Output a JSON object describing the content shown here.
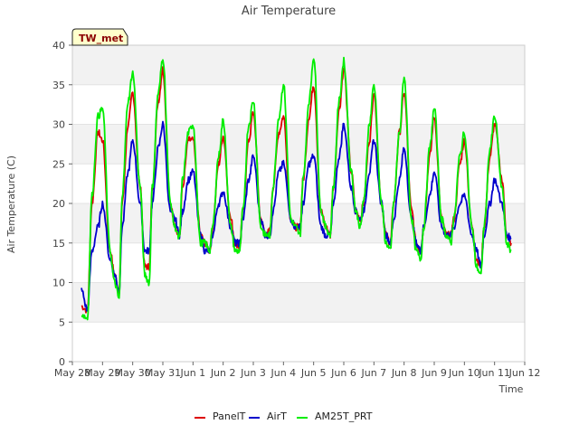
{
  "chart_data": {
    "type": "line",
    "title": "Air Temperature",
    "xlabel": "Time",
    "ylabel": "Air Temperature (C)",
    "station_badge": "TW_met",
    "ylim": [
      0,
      40
    ],
    "yticks": [
      0,
      5,
      10,
      15,
      20,
      25,
      30,
      35,
      40
    ],
    "xlim": [
      0,
      15
    ],
    "x_unit": "days since May 28",
    "xtick_labels": [
      "May 28",
      "May 29",
      "May 30",
      "May 31",
      "Jun 1",
      "Jun 2",
      "Jun 3",
      "Jun 4",
      "Jun 5",
      "Jun 6",
      "Jun 7",
      "Jun 8",
      "Jun 9",
      "Jun 10",
      "Jun 11",
      "Jun 12"
    ],
    "grid": "horizontal bands",
    "legend_position": "bottom-center",
    "series": [
      {
        "name": "PanelT",
        "color": "#dd0000",
        "x": [
          0.3,
          0.5,
          0.65,
          0.85,
          1.0,
          1.25,
          1.4,
          1.55,
          1.65,
          1.85,
          2.0,
          2.25,
          2.4,
          2.55,
          2.65,
          2.85,
          3.0,
          3.25,
          3.4,
          3.55,
          3.65,
          3.85,
          4.0,
          4.25,
          4.4,
          4.55,
          4.65,
          4.85,
          5.0,
          5.25,
          5.4,
          5.55,
          5.65,
          5.85,
          6.0,
          6.25,
          6.4,
          6.55,
          6.65,
          6.85,
          7.0,
          7.25,
          7.4,
          7.55,
          7.65,
          7.85,
          8.0,
          8.25,
          8.4,
          8.55,
          8.65,
          8.85,
          9.0,
          9.25,
          9.4,
          9.55,
          9.65,
          9.85,
          10.0,
          10.25,
          10.4,
          10.55,
          10.65,
          10.85,
          11.0,
          11.25,
          11.4,
          11.55,
          11.65,
          11.85,
          12.0,
          12.25,
          12.4,
          12.55,
          12.65,
          12.85,
          13.0,
          13.25,
          13.4,
          13.55,
          13.65,
          13.85,
          14.0,
          14.25,
          14.4,
          14.55
        ],
        "y": [
          7,
          6.5,
          20,
          29,
          28,
          14,
          11,
          9,
          20,
          30,
          34,
          22,
          12,
          12,
          22,
          33,
          37,
          20,
          17,
          16,
          22,
          28,
          28,
          16,
          15,
          14,
          17,
          25,
          28.5,
          18,
          15,
          14.5,
          19,
          28,
          31.5,
          18,
          16,
          16.5,
          22,
          29,
          31,
          18,
          17,
          17,
          23,
          31,
          35,
          19,
          17,
          16,
          22,
          32,
          37,
          24,
          19,
          18,
          20,
          28,
          34,
          20,
          16,
          15,
          20,
          29,
          34,
          19,
          15,
          14,
          17,
          26,
          31,
          18,
          16,
          16,
          18,
          25,
          28,
          17,
          13,
          12,
          17,
          26,
          30,
          23,
          16,
          15
        ]
      },
      {
        "name": "AirT",
        "color": "#0000cc",
        "x": [
          0.3,
          0.5,
          0.65,
          0.85,
          1.0,
          1.25,
          1.4,
          1.55,
          1.65,
          1.85,
          2.0,
          2.25,
          2.4,
          2.55,
          2.65,
          2.85,
          3.0,
          3.25,
          3.4,
          3.55,
          3.65,
          3.85,
          4.0,
          4.25,
          4.4,
          4.55,
          4.65,
          4.85,
          5.0,
          5.25,
          5.4,
          5.55,
          5.65,
          5.85,
          6.0,
          6.25,
          6.4,
          6.55,
          6.65,
          6.85,
          7.0,
          7.25,
          7.4,
          7.55,
          7.65,
          7.85,
          8.0,
          8.25,
          8.4,
          8.55,
          8.65,
          8.85,
          9.0,
          9.25,
          9.4,
          9.55,
          9.65,
          9.85,
          10.0,
          10.25,
          10.4,
          10.55,
          10.65,
          10.85,
          11.0,
          11.25,
          11.4,
          11.55,
          11.65,
          11.85,
          12.0,
          12.25,
          12.4,
          12.55,
          12.65,
          12.85,
          13.0,
          13.25,
          13.4,
          13.55,
          13.65,
          13.85,
          14.0,
          14.25,
          14.4,
          14.55
        ],
        "y": [
          9,
          6.5,
          14,
          17,
          20,
          13,
          11,
          9,
          17,
          24,
          28,
          20,
          14,
          14,
          20,
          27,
          30,
          19,
          18,
          16,
          19,
          23,
          24,
          16,
          14,
          14,
          16,
          20,
          21.5,
          17,
          15,
          15,
          18,
          23,
          26,
          18,
          16,
          16,
          19,
          24,
          25,
          18,
          17,
          17,
          20,
          25,
          26,
          17,
          16,
          16,
          20,
          26,
          30,
          22,
          19,
          18,
          19,
          24,
          28,
          20,
          16,
          15,
          18,
          23,
          27,
          18,
          15,
          14,
          17,
          21,
          24,
          17,
          16,
          16,
          17,
          20,
          21,
          16,
          14,
          12,
          16,
          20,
          23,
          20,
          16,
          15.5
        ]
      },
      {
        "name": "AM25T_PRT",
        "color": "#00ee00",
        "x": [
          0.3,
          0.5,
          0.65,
          0.85,
          1.0,
          1.25,
          1.4,
          1.55,
          1.65,
          1.85,
          2.0,
          2.25,
          2.4,
          2.55,
          2.65,
          2.85,
          3.0,
          3.25,
          3.4,
          3.55,
          3.65,
          3.85,
          4.0,
          4.25,
          4.4,
          4.55,
          4.65,
          4.85,
          5.0,
          5.25,
          5.4,
          5.55,
          5.65,
          5.85,
          6.0,
          6.25,
          6.4,
          6.55,
          6.65,
          6.85,
          7.0,
          7.25,
          7.4,
          7.55,
          7.65,
          7.85,
          8.0,
          8.25,
          8.4,
          8.55,
          8.65,
          8.85,
          9.0,
          9.25,
          9.4,
          9.55,
          9.65,
          9.85,
          10.0,
          10.25,
          10.4,
          10.55,
          10.65,
          10.85,
          11.0,
          11.25,
          11.4,
          11.55,
          11.65,
          11.85,
          12.0,
          12.25,
          12.4,
          12.55,
          12.65,
          12.85,
          13.0,
          13.25,
          13.4,
          13.55,
          13.65,
          13.85,
          14.0,
          14.25,
          14.4,
          14.55
        ],
        "y": [
          6,
          5.5,
          21,
          31,
          32,
          14,
          10,
          8,
          21,
          33,
          36.5,
          22,
          11,
          10,
          22,
          34,
          38.5,
          20,
          17,
          15.5,
          23,
          29,
          30,
          15,
          15,
          14,
          17,
          26,
          30.5,
          17,
          14,
          14,
          19,
          30,
          33,
          17,
          16,
          16,
          22,
          31,
          35,
          18,
          17,
          16,
          23,
          33,
          38.5,
          19,
          17,
          16,
          22,
          33,
          38,
          24,
          19,
          17,
          20,
          30,
          35,
          20,
          15,
          14,
          20,
          29,
          36,
          18,
          14,
          13,
          17,
          27,
          32,
          18,
          16,
          15,
          18,
          26,
          29,
          17,
          12,
          11,
          17,
          27,
          31,
          22,
          15,
          14
        ]
      }
    ]
  }
}
